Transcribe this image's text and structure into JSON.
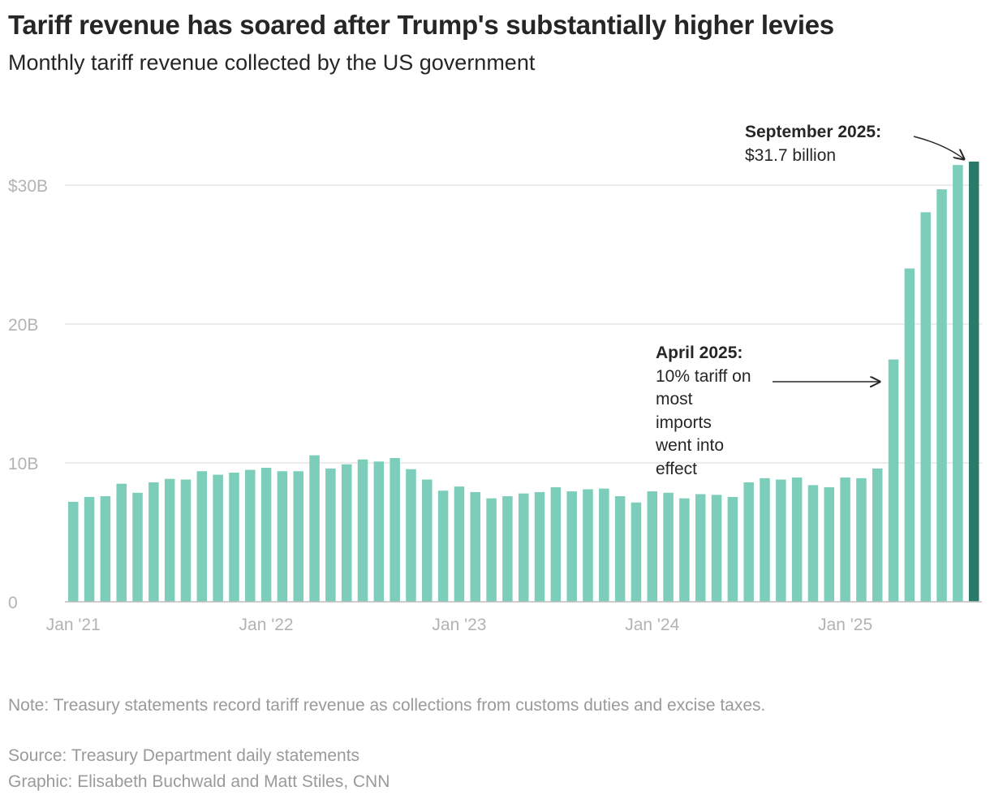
{
  "title": "Tariff revenue has soared after Trump's substantially higher levies",
  "subtitle": "Monthly tariff revenue collected by the US government",
  "colors": {
    "bar": "#7ccdb9",
    "highlight": "#2a7a6a",
    "grid": "#e6e6e6",
    "axis_text": "#b3b3b3"
  },
  "chart_data": {
    "type": "bar",
    "x_start": "Jan 2021",
    "x_end": "Sep 2025",
    "frequency": "monthly",
    "values": [
      7.2,
      7.55,
      7.6,
      8.5,
      7.85,
      8.6,
      8.85,
      8.8,
      9.4,
      9.15,
      9.3,
      9.5,
      9.65,
      9.4,
      9.4,
      10.55,
      9.6,
      9.9,
      10.25,
      10.1,
      10.35,
      9.55,
      8.8,
      8.0,
      8.3,
      7.9,
      7.45,
      7.6,
      7.8,
      7.9,
      8.25,
      7.95,
      8.1,
      8.15,
      7.6,
      7.15,
      7.95,
      7.85,
      7.45,
      7.75,
      7.7,
      7.55,
      8.6,
      8.9,
      8.8,
      8.95,
      8.4,
      8.25,
      8.95,
      8.9,
      9.6,
      17.45,
      24.0,
      28.05,
      29.7,
      31.45,
      31.7
    ],
    "highlight_index": 56,
    "ylim": [
      0,
      34
    ],
    "yticks": [
      0,
      10,
      20,
      30
    ],
    "ytick_labels": [
      "0",
      "10B",
      "20B",
      "$30B"
    ],
    "xtick_labels": [
      "Jan '21",
      "Jan '22",
      "Jan '23",
      "Jan '24",
      "Jan '25"
    ],
    "xtick_indices": [
      0,
      12,
      24,
      36,
      48
    ],
    "grid": true,
    "annotations": [
      {
        "heading": "September 2025:",
        "lines": [
          "$31.7 billion"
        ]
      },
      {
        "heading": "April 2025:",
        "lines": [
          "10% tariff on",
          "most",
          "imports",
          "went into",
          "effect"
        ]
      }
    ]
  },
  "footer": {
    "note": "Note: Treasury statements record tariff revenue as collections from customs duties and excise taxes.",
    "source": "Source: Treasury Department daily statements",
    "credit": "Graphic: Elisabeth Buchwald and Matt Stiles, CNN"
  }
}
